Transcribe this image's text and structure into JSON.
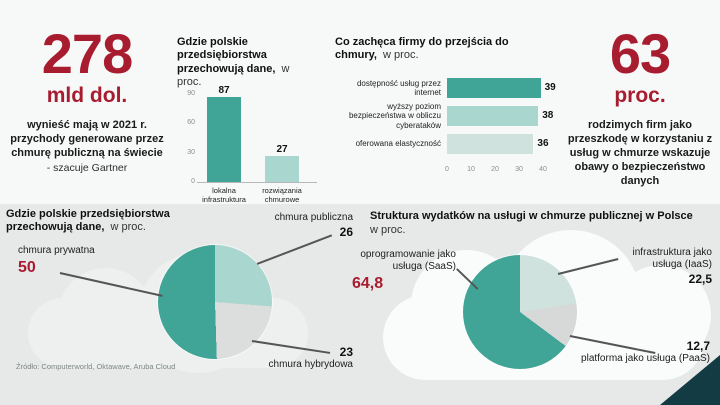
{
  "stats": {
    "left": {
      "value": "278",
      "unit": "mld dol.",
      "description": "wynieść mają w 2021 r. przychody generowane przez chmurę publiczną na świecie",
      "attribution": "- szacuje Gartner"
    },
    "right": {
      "value": "63",
      "unit": "proc.",
      "description": "rodzimych firm jako przeszkodę w korzystaniu z usług w chmurze wskazuje obawy o bezpieczeństwo danych"
    }
  },
  "source": "Źródło: Computerworld, Oktawave, Aruba Cloud",
  "colors": {
    "accent_red": "#a81c30",
    "teal": "#40a496",
    "teal_light": "#a9d6ce",
    "teal_pale": "#cfe2dd",
    "gray_slice": "#dbdedd",
    "dark_corner": "#123b44"
  },
  "chart_data": [
    {
      "id": "storage-bar",
      "type": "bar",
      "title": "Gdzie polskie przedsiębiorstwa przechowują dane,",
      "title_suffix": "w proc.",
      "categories": [
        "lokalna infrastruktura",
        "rozwiązania chmurowe"
      ],
      "values": [
        87,
        27
      ],
      "ylim": [
        0,
        90
      ],
      "yticks": [
        90,
        60,
        30,
        0
      ],
      "bar_colors": [
        "#40a496",
        "#a9d6ce"
      ]
    },
    {
      "id": "motivation-bar",
      "type": "bar-horizontal",
      "title": "Co zachęca firmy do przejścia do chmury,",
      "title_suffix": "w proc.",
      "categories": [
        "dostępność usług przez internet",
        "wyższy poziom bezpieczeństwa w obliczu cyberataków",
        "oferowana elastyczność"
      ],
      "values": [
        39,
        38,
        36
      ],
      "xlim": [
        0,
        40
      ],
      "xticks": [
        0,
        10,
        20,
        30,
        40
      ],
      "bar_colors": [
        "#40a496",
        "#a9d6ce",
        "#cfe2dd"
      ]
    },
    {
      "id": "storage-pie",
      "type": "pie",
      "title": "Gdzie polskie przedsiębiorstwa przechowują dane,",
      "title_suffix": "w proc.",
      "slices": [
        {
          "label": "chmura publiczna",
          "value": "26",
          "color": "#a9d6ce"
        },
        {
          "label": "chmura hybrydowa",
          "value": "23",
          "color": "#dbdedd"
        },
        {
          "label": "chmura prywatna",
          "value": "50",
          "color": "#40a496",
          "highlight": true
        }
      ]
    },
    {
      "id": "spending-pie",
      "type": "pie",
      "title": "Struktura wydatków na usługi w chmurze publicznej w Polsce",
      "title_suffix": "w proc.",
      "slices": [
        {
          "label": "infrastruktura jako usługa (IaaS)",
          "value": "22,5",
          "color": "#cfe2dd"
        },
        {
          "label": "platforma jako usługa (PaaS)",
          "value": "12,7",
          "color": "#d6d9d8"
        },
        {
          "label": "oprogramowanie jako usługa (SaaS)",
          "value": "64,8",
          "color": "#40a496",
          "highlight": true
        }
      ]
    }
  ]
}
